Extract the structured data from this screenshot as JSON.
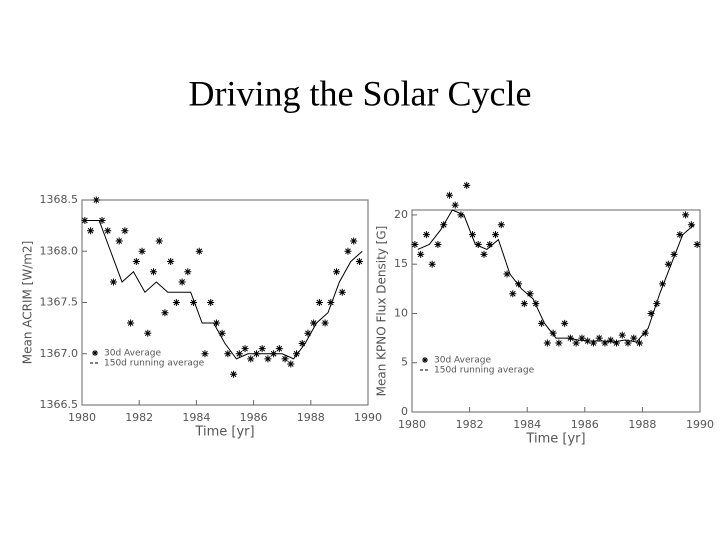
{
  "title": "Driving the Solar Cycle",
  "chart_data": [
    {
      "type": "scatter",
      "xlabel": "Time [yr]",
      "ylabel": "Mean ACRIM [W/m2]",
      "xlim": [
        1980,
        1990
      ],
      "xticks": [
        1980,
        1982,
        1984,
        1986,
        1988,
        1990
      ],
      "ylim": [
        1366.5,
        1368.5
      ],
      "yticks": [
        1366.5,
        {
          "value": 1367,
          "label": "1367.0"
        },
        1367.5,
        {
          "value": 1368,
          "label": "1368.0"
        },
        1368.5
      ],
      "color": "#000000",
      "series": [
        {
          "name": "30d Average",
          "marker": "asterisk",
          "x": [
            1980.1,
            1980.3,
            1980.5,
            1980.7,
            1980.9,
            1981.1,
            1981.3,
            1981.5,
            1981.7,
            1981.9,
            1982.1,
            1982.3,
            1982.5,
            1982.7,
            1982.9,
            1983.1,
            1983.3,
            1983.5,
            1983.7,
            1983.9,
            1984.1,
            1984.3,
            1984.5,
            1984.7,
            1984.9,
            1985.1,
            1985.3,
            1985.5,
            1985.7,
            1985.9,
            1986.1,
            1986.3,
            1986.5,
            1986.7,
            1986.9,
            1987.1,
            1987.3,
            1987.5,
            1987.7,
            1987.9,
            1988.1,
            1988.3,
            1988.5,
            1988.7,
            1988.9,
            1989.1,
            1989.3,
            1989.5,
            1989.7
          ],
          "values": [
            1368.3,
            1368.2,
            1368.5,
            1368.3,
            1368.2,
            1367.7,
            1368.1,
            1368.2,
            1367.3,
            1367.9,
            1368.0,
            1367.2,
            1367.8,
            1368.1,
            1367.4,
            1367.9,
            1367.5,
            1367.7,
            1367.8,
            1367.5,
            1368.0,
            1367.0,
            1367.5,
            1367.3,
            1367.2,
            1367.0,
            1366.8,
            1367.0,
            1367.05,
            1366.95,
            1367.0,
            1367.05,
            1366.95,
            1367.0,
            1367.05,
            1366.95,
            1366.9,
            1367.0,
            1367.1,
            1367.2,
            1367.3,
            1367.5,
            1367.3,
            1367.5,
            1367.8,
            1367.6,
            1368.0,
            1368.1,
            1367.9
          ]
        },
        {
          "name": "150d running average",
          "marker": "line",
          "x": [
            1980.2,
            1980.6,
            1981.0,
            1981.4,
            1981.8,
            1982.2,
            1982.6,
            1983.0,
            1983.4,
            1983.8,
            1984.2,
            1984.6,
            1985.0,
            1985.4,
            1985.8,
            1986.2,
            1986.6,
            1987.0,
            1987.4,
            1987.8,
            1988.2,
            1988.6,
            1989.0,
            1989.4,
            1989.8
          ],
          "values": [
            1368.3,
            1368.3,
            1368.0,
            1367.7,
            1367.8,
            1367.6,
            1367.7,
            1367.6,
            1367.6,
            1367.6,
            1367.3,
            1367.3,
            1367.1,
            1366.95,
            1367.0,
            1367.0,
            1367.0,
            1367.0,
            1366.95,
            1367.1,
            1367.3,
            1367.4,
            1367.7,
            1367.9,
            1368.0
          ]
        }
      ]
    },
    {
      "type": "scatter",
      "xlabel": "Time [yr]",
      "ylabel": "Mean KPNO Flux Density [G]",
      "xlim": [
        1980,
        1990
      ],
      "xticks": [
        1980,
        1982,
        1984,
        1986,
        1988,
        1990
      ],
      "ylim": [
        0,
        20.5
      ],
      "yticks": [
        0,
        5,
        10,
        15,
        20
      ],
      "color": "#000000",
      "series": [
        {
          "name": "30d Average",
          "marker": "asterisk",
          "x": [
            1980.1,
            1980.3,
            1980.5,
            1980.7,
            1980.9,
            1981.1,
            1981.3,
            1981.5,
            1981.7,
            1981.9,
            1982.1,
            1982.3,
            1982.5,
            1982.7,
            1982.9,
            1983.1,
            1983.3,
            1983.5,
            1983.7,
            1983.9,
            1984.1,
            1984.3,
            1984.5,
            1984.7,
            1984.9,
            1985.1,
            1985.3,
            1985.5,
            1985.7,
            1985.9,
            1986.1,
            1986.3,
            1986.5,
            1986.7,
            1986.9,
            1987.1,
            1987.3,
            1987.5,
            1987.7,
            1987.9,
            1988.1,
            1988.3,
            1988.5,
            1988.7,
            1988.9,
            1989.1,
            1989.3,
            1989.5,
            1989.7,
            1989.9
          ],
          "values": [
            17,
            16,
            18,
            15,
            17,
            19,
            22,
            21,
            20,
            23,
            18,
            17,
            16,
            17,
            18,
            19,
            14,
            12,
            13,
            11,
            12,
            11,
            9,
            7,
            8,
            7,
            9,
            7.5,
            7,
            7.5,
            7.2,
            7,
            7.5,
            7,
            7.3,
            7,
            7.8,
            7,
            7.5,
            7,
            8,
            10,
            11,
            13,
            15,
            16,
            18,
            20,
            19,
            17
          ]
        },
        {
          "name": "150d running average",
          "marker": "line",
          "x": [
            1980.2,
            1980.6,
            1981.0,
            1981.4,
            1981.8,
            1982.2,
            1982.6,
            1983.0,
            1983.4,
            1983.8,
            1984.2,
            1984.6,
            1985.0,
            1985.4,
            1985.8,
            1986.2,
            1986.6,
            1987.0,
            1987.4,
            1987.8,
            1988.2,
            1988.6,
            1989.0,
            1989.4,
            1989.8
          ],
          "values": [
            16.5,
            17,
            18.5,
            20.5,
            20,
            17,
            16.5,
            17.5,
            14,
            12.5,
            11.5,
            9,
            7.5,
            7.5,
            7.3,
            7.2,
            7.2,
            7.1,
            7.3,
            7.1,
            8.5,
            12,
            15,
            18,
            19
          ]
        }
      ]
    }
  ]
}
